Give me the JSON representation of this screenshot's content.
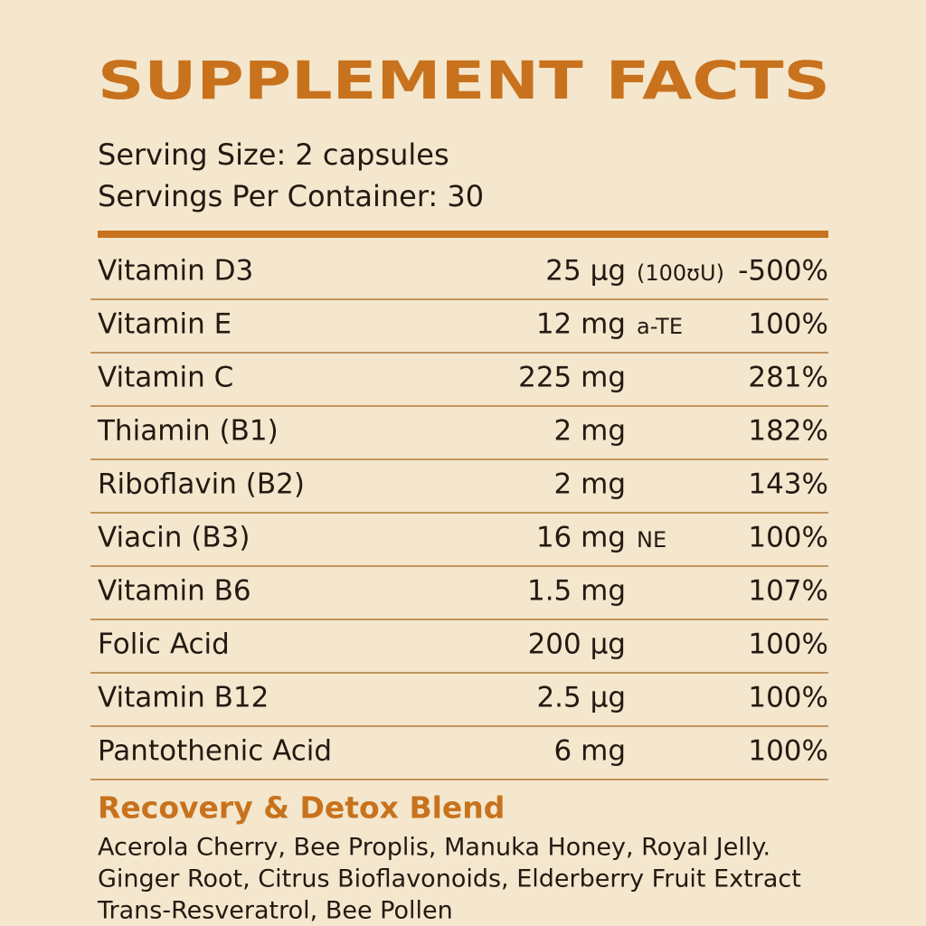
{
  "header": {
    "title": "SUPPLEMENT FACTS",
    "serving_size": "Serving Size: 2 capsules",
    "servings_per_container": "Servings Per Container: 30"
  },
  "table": {
    "rows": [
      {
        "name": "Vitamin D3",
        "amount": "25 μg",
        "note": "(100ʊU)",
        "dv": "-500%"
      },
      {
        "name": "Vitamin E",
        "amount": "12 mg",
        "note": "a-TE",
        "dv": "100%"
      },
      {
        "name": "Vitamin C",
        "amount": "225 mg",
        "dv": "281%"
      },
      {
        "name": "Thiamin (B1)",
        "amount": "2 mg",
        "dv": "182%"
      },
      {
        "name": "Riboflavin (B2)",
        "amount": "2 mg",
        "dv": "143%"
      },
      {
        "name": "Viacin (B3)",
        "amount": "16 mg",
        "note": "NE",
        "dv": "100%"
      },
      {
        "name": "Vitamin B6",
        "amount": "1.5 mg",
        "dv": "107%"
      },
      {
        "name": "Folic Acid",
        "amount": "200 μg",
        "dv": "100%"
      },
      {
        "name": "Vitamin B12",
        "amount": "2.5 μg",
        "dv": "100%"
      },
      {
        "name": "Pantothenic Acid",
        "amount": "6 mg",
        "dv": "100%"
      }
    ]
  },
  "blend": {
    "title": "Recovery & Detox Blend",
    "lines": [
      "Acerola Cherry, Bee Proplis, Manuka Honey, Royal Jelly.",
      "Ginger Root, Citrus Bioflavonoids, Elderberry Fruit Extract",
      "Trans-Resveratrol, Bee Pollen"
    ]
  }
}
